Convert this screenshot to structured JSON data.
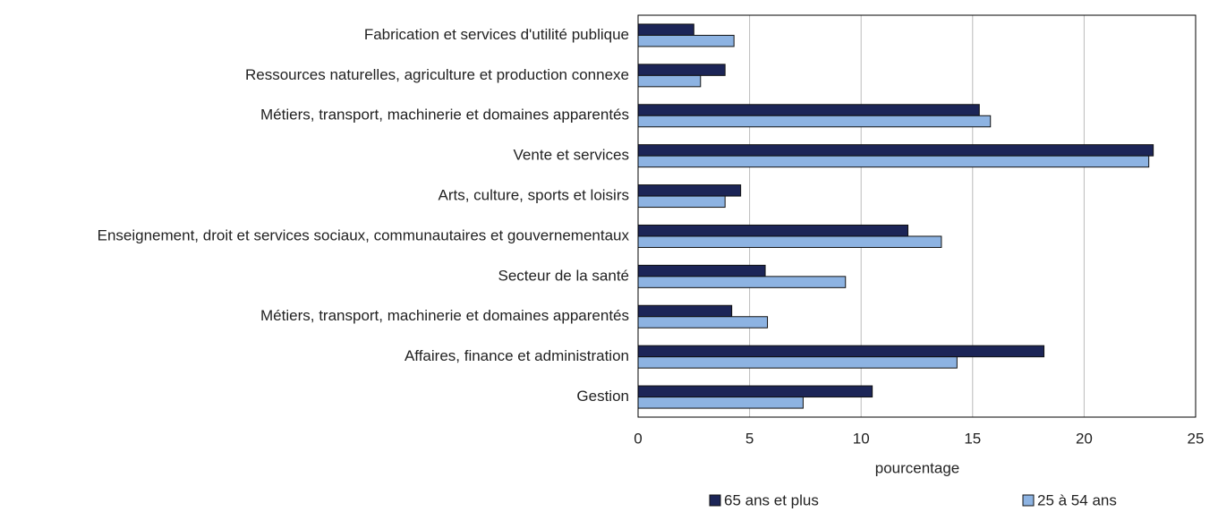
{
  "chart_data": {
    "type": "hbar",
    "x_label": "pourcentage",
    "categories": [
      "Fabrication et services d'utilité publique",
      "Ressources naturelles, agriculture et production connexe",
      "Métiers, transport, machinerie et domaines apparentés",
      "Vente et services",
      "Arts, culture, sports et loisirs",
      "Enseignement, droit et services sociaux, communautaires et gouvernementaux",
      "Secteur de la santé",
      "Métiers, transport, machinerie et domaines apparentés",
      "Affaires, finance et administration",
      "Gestion"
    ],
    "series": [
      {
        "name": "65 ans et plus",
        "color": "#1c2557",
        "values": [
          2.5,
          3.9,
          15.3,
          23.1,
          4.6,
          12.1,
          5.7,
          4.2,
          18.2,
          10.5
        ]
      },
      {
        "name": "25 à 54 ans",
        "color": "#8db3e2",
        "values": [
          4.3,
          2.8,
          15.8,
          22.9,
          3.9,
          13.6,
          9.3,
          5.8,
          14.3,
          7.4
        ]
      }
    ],
    "xlim": [
      0,
      25
    ],
    "xticks": [
      0,
      5,
      10,
      15,
      20,
      25
    ],
    "grid": true
  }
}
